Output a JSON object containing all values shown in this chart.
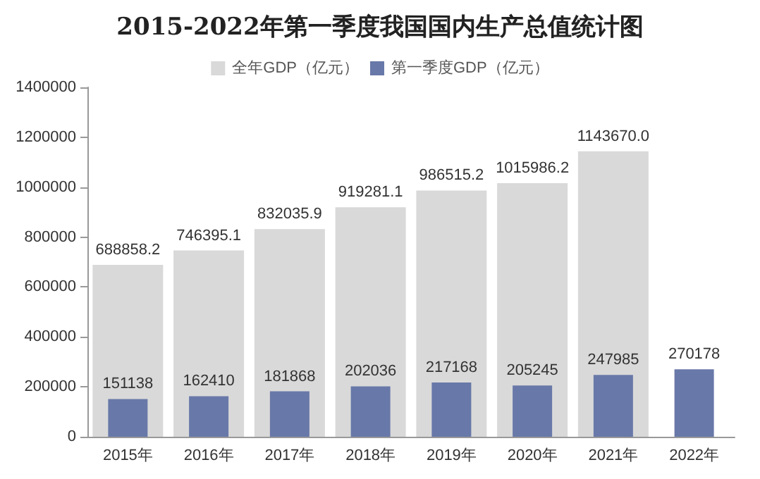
{
  "chart_data": {
    "type": "bar",
    "title": "2015-2022年第一季度我国国内生产总值统计图",
    "categories": [
      "2015年",
      "2016年",
      "2017年",
      "2018年",
      "2019年",
      "2020年",
      "2021年",
      "2022年"
    ],
    "series": [
      {
        "name": "全年GDP（亿元）",
        "color": "#d9d9d9",
        "values": [
          688858.2,
          746395.1,
          832035.9,
          919281.1,
          986515.2,
          1015986.2,
          1143670.0,
          null
        ],
        "value_labels": [
          "688858.2",
          "746395.1",
          "832035.9",
          "919281.1",
          "986515.2",
          "1015986.2",
          "1143670.0",
          null
        ]
      },
      {
        "name": "第一季度GDP（亿元）",
        "color": "#6878a8",
        "values": [
          151138,
          162410,
          181868,
          202036,
          217168,
          205245,
          247985,
          270178
        ],
        "value_labels": [
          "151138",
          "162410",
          "181868",
          "202036",
          "217168",
          "205245",
          "247985",
          "270178"
        ]
      }
    ],
    "ylim": [
      0,
      1400000
    ],
    "yticks": [
      0,
      200000,
      400000,
      600000,
      800000,
      1000000,
      1200000,
      1400000
    ],
    "legend": "top"
  }
}
